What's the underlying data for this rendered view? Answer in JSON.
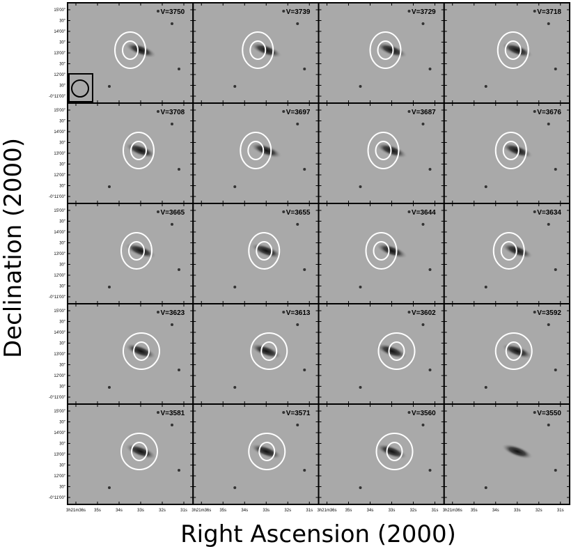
{
  "panels": [
    {
      "label": "V=3750"
    },
    {
      "label": "V=3739"
    },
    {
      "label": "V=3729"
    },
    {
      "label": "V=3718"
    },
    {
      "label": "V=3708"
    },
    {
      "label": "V=3697"
    },
    {
      "label": "V=3687"
    },
    {
      "label": "V=3676"
    },
    {
      "label": "V=3665"
    },
    {
      "label": "V=3655"
    },
    {
      "label": "V=3644"
    },
    {
      "label": "V=3634"
    },
    {
      "label": "V=3623"
    },
    {
      "label": "V=3613"
    },
    {
      "label": "V=3602"
    },
    {
      "label": "V=3592"
    },
    {
      "label": "V=3581"
    },
    {
      "label": "V=3571"
    },
    {
      "label": "V=3560"
    },
    {
      "label": "V=3550"
    }
  ],
  "y_axis": {
    "label": "Declination (2000)",
    "ticks": [
      "15'00\"",
      "30\"",
      "14'00\"",
      "30\"",
      "13'00\"",
      "30\"",
      "12'00\"",
      "30\"",
      "-0°11'00\""
    ]
  },
  "x_axis": {
    "label": "Right Ascension (2000)",
    "ticks": [
      "3h21m36s",
      "35s",
      "34s",
      "33s",
      "32s",
      "31s"
    ]
  }
}
